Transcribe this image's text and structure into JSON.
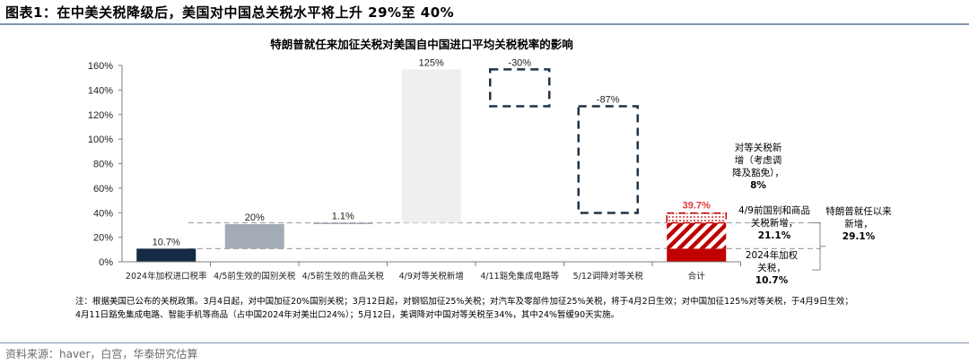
{
  "figure_title": "图表1：在中美关税降级后，美国对中国总关税水平将上升 29%至 40%",
  "chart_data": {
    "type": "waterfall",
    "title": "特朗普就任来加征关税对美国自中国进口平均关税税率的影响",
    "xlabel": "",
    "ylabel": "",
    "ylim": [
      0,
      160
    ],
    "yticks": [
      "0%",
      "20%",
      "40%",
      "60%",
      "80%",
      "100%",
      "120%",
      "140%",
      "160%"
    ],
    "grid": false,
    "categories": [
      "2024年加权进口税率",
      "4/5前生效的国别关税",
      "4/5前生效的商品关税",
      "4/9对等关税新增",
      "4/11豁免集成电路等",
      "5/12调降对等关税",
      "合计"
    ],
    "steps": [
      {
        "value": 10.7,
        "label": "10.7%",
        "base": 0,
        "color": "#142a45",
        "style": "solid"
      },
      {
        "value": 20,
        "label": "20%",
        "base": 10.7,
        "color": "#a3acb6",
        "style": "solid"
      },
      {
        "value": 1.1,
        "label": "1.1%",
        "base": 30.7,
        "color": "#a3acb6",
        "style": "solid"
      },
      {
        "value": 125,
        "label": "125%",
        "base": 31.8,
        "color": "#efeff1",
        "style": "solid"
      },
      {
        "value": -30,
        "label": "-30%",
        "base": 156.8,
        "color": "#1f3347",
        "style": "dashed-outline"
      },
      {
        "value": -87,
        "label": "-87%",
        "base": 126.8,
        "color": "#1f3347",
        "style": "dashed-outline"
      }
    ],
    "total": {
      "label": "39.7%",
      "label_color": "#e0393e",
      "segments": [
        {
          "value": 10.7,
          "style": "solid",
          "color": "#c00000"
        },
        {
          "value": 21.1,
          "style": "hatched",
          "color": "#c00000"
        },
        {
          "value": 7.9,
          "style": "dotted",
          "color": "#c00000"
        }
      ]
    },
    "reference_lines": [
      10.7,
      31.8
    ],
    "annotations": {
      "reciprocal": {
        "text": "对等关税新增（考虑调降及豁免），",
        "value": "8%"
      },
      "pre_4_9": {
        "text": "4/9前国别和商品关税新增，",
        "value": "21.1%"
      },
      "base_2024": {
        "text": "2024年加权关税，",
        "value": "10.7%"
      },
      "since_trump": {
        "text": "特朗普就任以来新增，",
        "value": "29.1%"
      }
    }
  },
  "note": [
    "注：根据美国已公布的关税政策。3月4日起，对中国加征20%国别关税；3月12日起，对钢铝加征25%关税；对汽车及零部件加征25%关税，将于4月2日生效；对中国加征125%对等关税，于4月9日生效；",
    "4月11日豁免集成电路、智能手机等商品（占中国2024年对美出口24%）；5月12日，美调降对中国对等关税至34%，其中24%暂缓90天实施。"
  ],
  "source": "资料来源：haver，白宫，华泰研究估算"
}
